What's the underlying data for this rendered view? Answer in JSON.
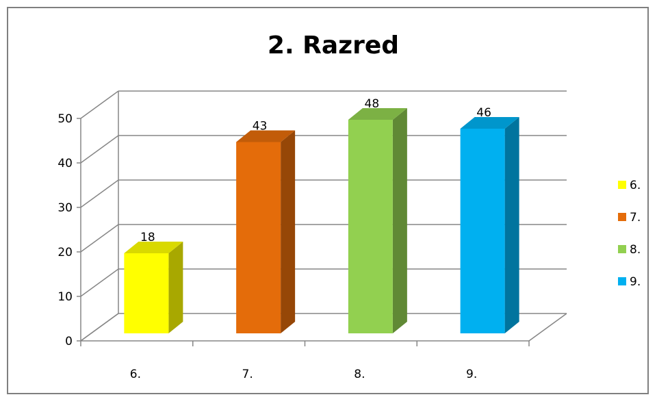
{
  "chart_data": {
    "type": "bar",
    "title": "2. Razred",
    "categories": [
      "6.",
      "7.",
      "8.",
      "9."
    ],
    "values": [
      18,
      43,
      48,
      46
    ],
    "colors": [
      "#ffff00",
      "#e46c0a",
      "#92d050",
      "#00b0f0"
    ],
    "ylim": [
      0,
      50
    ],
    "yticks": [
      0,
      10,
      20,
      30,
      40,
      50
    ],
    "grid": true,
    "legend": {
      "placement": "right",
      "entries": [
        "6.",
        "7.",
        "8.",
        "9."
      ]
    },
    "style": "3d-columns"
  }
}
